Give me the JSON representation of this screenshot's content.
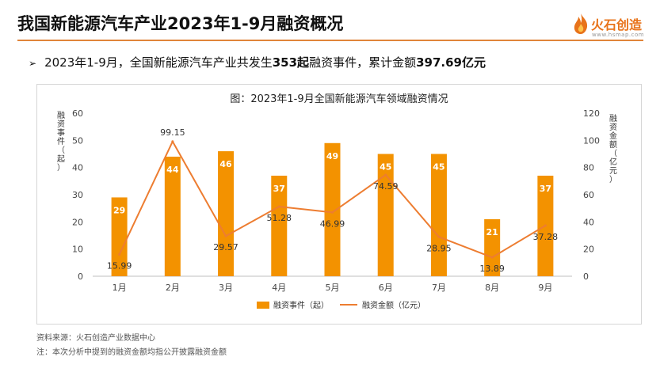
{
  "header": {
    "title": "我国新能源汽车产业2023年1-9月融资概况"
  },
  "logo": {
    "name": "火石创造",
    "url": "www.hsmap.com"
  },
  "summary": {
    "bullet": "➢",
    "text_prefix": "2023年1-9月，全国新能源汽车产业共发生",
    "events": "353起",
    "text_mid": "融资事件，累计金额",
    "amount": "397.69亿元"
  },
  "footer": {
    "source": "资料来源：火石创造产业数据中心",
    "note": "注：本次分析中提到的融资金额均指公开披露融资金额"
  },
  "colors": {
    "bar": "#f39200",
    "line": "#ed7d31",
    "accent": "#e0853a"
  },
  "chart_data": {
    "type": "bar",
    "title": "图：2023年1-9月全国新能源汽车领域融资情况",
    "categories": [
      "1月",
      "2月",
      "3月",
      "4月",
      "5月",
      "6月",
      "7月",
      "8月",
      "9月"
    ],
    "series": [
      {
        "name": "融资事件（起）",
        "type": "bar",
        "axis": "left",
        "values": [
          29,
          44,
          46,
          37,
          49,
          45,
          45,
          21,
          37
        ],
        "labels": [
          "29",
          "44",
          "46",
          "37",
          "49",
          "45",
          "45",
          "21",
          "37"
        ]
      },
      {
        "name": "融资金额（亿元）",
        "type": "line",
        "axis": "right",
        "values": [
          15.99,
          99.15,
          29.57,
          51.28,
          46.99,
          74.59,
          28.95,
          13.89,
          37.28
        ],
        "labels": [
          "15.99",
          "99.15",
          "29.57",
          "51.28",
          "46.99",
          "74.59",
          "28.95",
          "13.89",
          "37.28"
        ]
      }
    ],
    "ylabel_left": "融资事件（起）",
    "ylabel_right": "融资金额（亿元）",
    "ylim_left": [
      0,
      60
    ],
    "ylim_right": [
      0,
      120
    ],
    "yticks_left": [
      "0",
      "10",
      "20",
      "30",
      "40",
      "50",
      "60"
    ],
    "yticks_right": [
      "0",
      "20",
      "40",
      "60",
      "80",
      "100",
      "120"
    ],
    "grid": false,
    "legend_position": "bottom"
  }
}
